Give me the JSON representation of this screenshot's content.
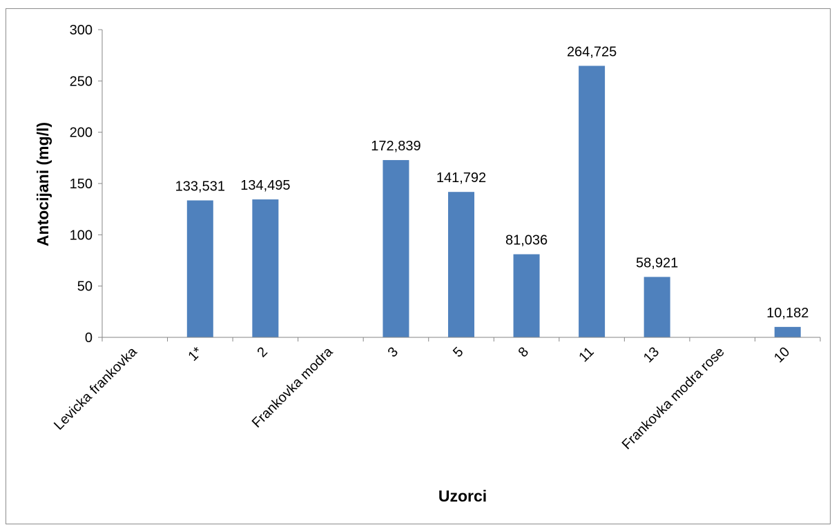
{
  "chart_data": {
    "type": "bar",
    "title": "",
    "xlabel": "Uzorci",
    "ylabel": "Antocijani (mg/l)",
    "ylim": [
      0,
      300
    ],
    "yticks": [
      0,
      50,
      100,
      150,
      200,
      250,
      300
    ],
    "grid": false,
    "legend": "none",
    "bar_color": "#4f81bd",
    "categories": [
      "Levicka frankovka",
      "1*",
      "2",
      "Frankovka modra",
      "3",
      "5",
      "8",
      "11",
      "13",
      "Frankovka modra rose",
      "10"
    ],
    "values": [
      null,
      133.531,
      134.495,
      null,
      172.839,
      141.792,
      81.036,
      264.725,
      58.921,
      null,
      10.182
    ],
    "data_labels": [
      "",
      "133,531",
      "134,495",
      "",
      "172,839",
      "141,792",
      "81,036",
      "264,725",
      "58,921",
      "",
      "10,182"
    ]
  }
}
